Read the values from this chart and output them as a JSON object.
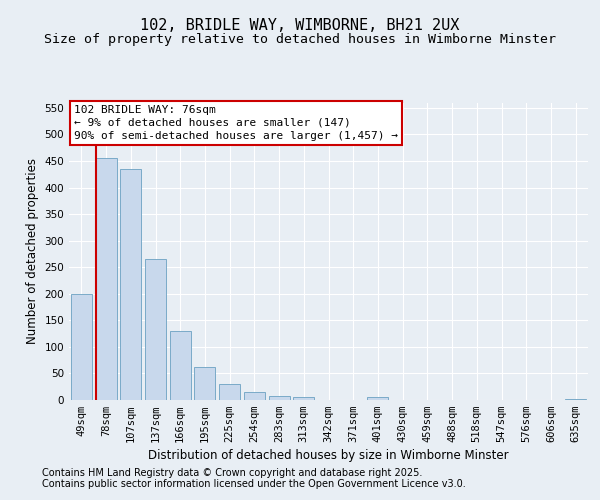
{
  "title": "102, BRIDLE WAY, WIMBORNE, BH21 2UX",
  "subtitle": "Size of property relative to detached houses in Wimborne Minster",
  "xlabel": "Distribution of detached houses by size in Wimborne Minster",
  "ylabel": "Number of detached properties",
  "categories": [
    "49sqm",
    "78sqm",
    "107sqm",
    "137sqm",
    "166sqm",
    "195sqm",
    "225sqm",
    "254sqm",
    "283sqm",
    "313sqm",
    "342sqm",
    "371sqm",
    "401sqm",
    "430sqm",
    "459sqm",
    "488sqm",
    "518sqm",
    "547sqm",
    "576sqm",
    "606sqm",
    "635sqm"
  ],
  "values": [
    200,
    455,
    435,
    265,
    130,
    62,
    31,
    15,
    8,
    5,
    0,
    0,
    5,
    0,
    0,
    0,
    0,
    0,
    0,
    0,
    1
  ],
  "bar_color": "#c8d8ec",
  "bar_edge_color": "#7aaac8",
  "marker_line_color": "#cc0000",
  "annotation_text": "102 BRIDLE WAY: 76sqm\n← 9% of detached houses are smaller (147)\n90% of semi-detached houses are larger (1,457) →",
  "annotation_box_color": "#ffffff",
  "annotation_box_edge_color": "#cc0000",
  "ylim": [
    0,
    560
  ],
  "yticks": [
    0,
    50,
    100,
    150,
    200,
    250,
    300,
    350,
    400,
    450,
    500,
    550
  ],
  "footer_line1": "Contains HM Land Registry data © Crown copyright and database right 2025.",
  "footer_line2": "Contains public sector information licensed under the Open Government Licence v3.0.",
  "bg_color": "#e8eef4",
  "plot_bg_color": "#e8eef4",
  "grid_color": "#ffffff",
  "title_fontsize": 11,
  "subtitle_fontsize": 9.5,
  "axis_label_fontsize": 8.5,
  "tick_fontsize": 7.5,
  "annotation_fontsize": 8,
  "footer_fontsize": 7
}
